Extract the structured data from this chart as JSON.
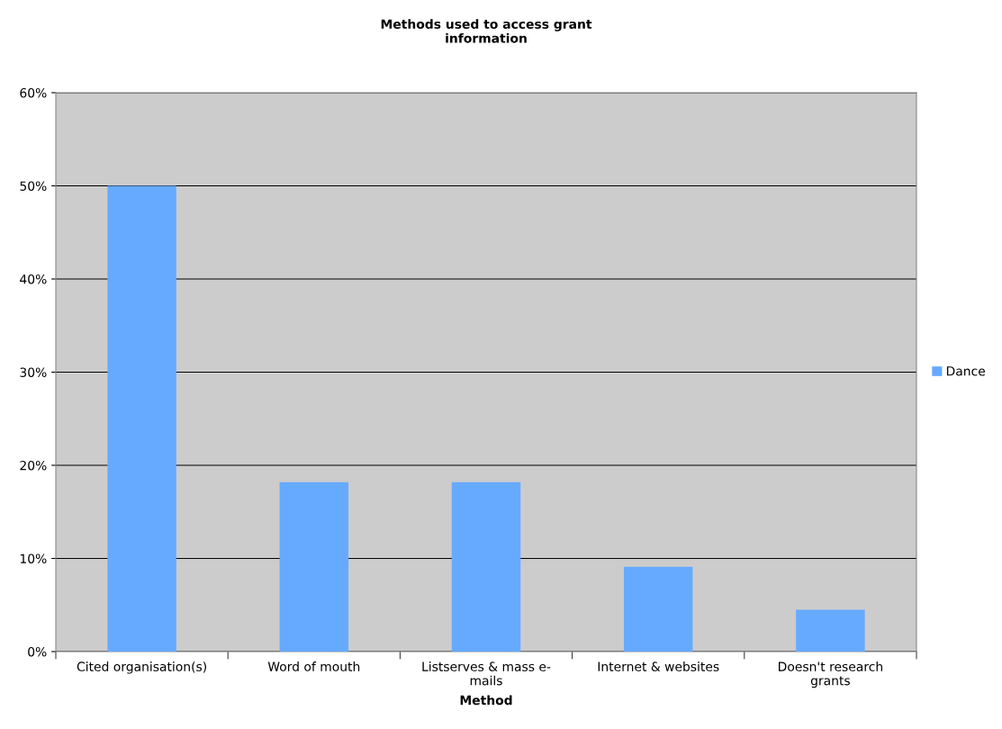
{
  "chart_data": {
    "type": "bar",
    "title": "Methods used to access grant\ninformation",
    "xlabel": "Method",
    "categories": [
      "Cited organisation(s)",
      "Word of mouth",
      "Listserves & mass e-\nmails",
      "Internet & websites",
      "Doesn't research\ngrants"
    ],
    "series": [
      {
        "name": "Dance",
        "color": "#66aaff",
        "values": [
          50,
          18.2,
          18.2,
          9.1,
          4.5
        ]
      }
    ],
    "ylim": [
      0,
      60
    ],
    "yticks": [
      {
        "value": 0,
        "label": "0%"
      },
      {
        "value": 10,
        "label": "10%"
      },
      {
        "value": 20,
        "label": "20%"
      },
      {
        "value": 30,
        "label": "30%"
      },
      {
        "value": 40,
        "label": "40%"
      },
      {
        "value": 50,
        "label": "50%"
      },
      {
        "value": 60,
        "label": "60%"
      }
    ],
    "grid": "y",
    "legend": "right"
  }
}
